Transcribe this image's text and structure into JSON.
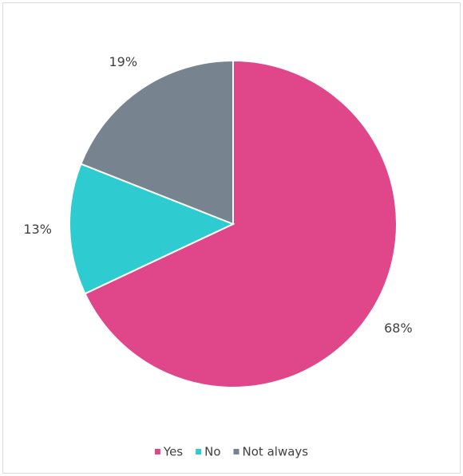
{
  "chart_data": {
    "type": "pie",
    "categories": [
      "Yes",
      "No",
      "Not always"
    ],
    "values": [
      68,
      13,
      19
    ],
    "value_labels": [
      "68%",
      "13%",
      "19%"
    ],
    "colors": [
      "#e0468a",
      "#2ecbd1",
      "#77838f"
    ],
    "legend": "bottom"
  }
}
